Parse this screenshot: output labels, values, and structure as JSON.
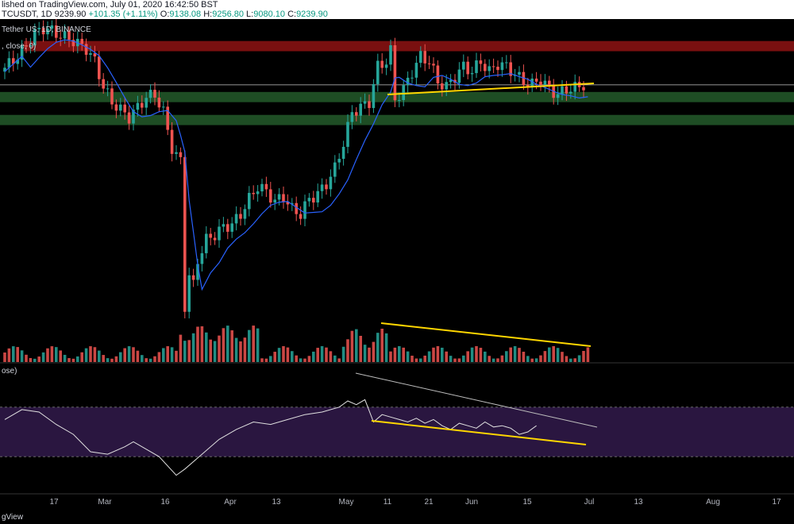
{
  "header": {
    "published": "lished on TradingView.com, July 01, 2020 16:42:50 BST",
    "symbol": "TCUSDT, 1D",
    "last": "9239.90",
    "change": "+101.35 (+1.11%)",
    "o_label": "O:",
    "o_val": "9138.08",
    "h_label": "H:",
    "h_val": "9256.80",
    "l_label": "L:",
    "l_val": "9080.10",
    "c_label": "C:",
    "c_val": "9239.90"
  },
  "legend": {
    "pair": "Tether US, 1D, BINANCE",
    "ma": ", close, 0)",
    "rsi": "ose)"
  },
  "footer": {
    "brand": "gView"
  },
  "colors": {
    "up": "#26a69a",
    "down": "#ef5350",
    "ma": "#2962ff",
    "resistance": "#7a1010",
    "support": "#1e4d24",
    "trend": "#ffd600",
    "rsi_band": "#2a1640"
  },
  "chart_data": {
    "type": "candlestick",
    "x_tick_labels": [
      "17",
      "Mar",
      "16",
      "Apr",
      "13",
      "May",
      "11",
      "21",
      "Jun",
      "15",
      "Jul",
      "13",
      "Aug",
      "17"
    ],
    "price_series": [
      [
        0,
        9500
      ],
      [
        2,
        9650
      ],
      [
        4,
        9800
      ],
      [
        6,
        10000
      ],
      [
        8,
        10250
      ],
      [
        10,
        10350
      ],
      [
        12,
        10300
      ],
      [
        14,
        10200
      ],
      [
        16,
        10150
      ],
      [
        18,
        10050
      ],
      [
        20,
        9950
      ],
      [
        22,
        9700
      ],
      [
        24,
        9200
      ],
      [
        26,
        8900
      ],
      [
        28,
        8750
      ],
      [
        30,
        8600
      ],
      [
        32,
        8800
      ],
      [
        34,
        9000
      ],
      [
        36,
        9050
      ],
      [
        38,
        8700
      ],
      [
        40,
        8000
      ],
      [
        41,
        7850
      ],
      [
        42,
        7750
      ],
      [
        43,
        4900
      ],
      [
        44,
        5500
      ],
      [
        45,
        5300
      ],
      [
        46,
        5800
      ],
      [
        48,
        6200
      ],
      [
        50,
        6300
      ],
      [
        52,
        6450
      ],
      [
        54,
        6500
      ],
      [
        56,
        6700
      ],
      [
        58,
        7000
      ],
      [
        60,
        7250
      ],
      [
        62,
        7150
      ],
      [
        64,
        6950
      ],
      [
        66,
        7050
      ],
      [
        68,
        6800
      ],
      [
        70,
        6700
      ],
      [
        72,
        7000
      ],
      [
        74,
        7100
      ],
      [
        76,
        7300
      ],
      [
        78,
        7600
      ],
      [
        80,
        8100
      ],
      [
        82,
        8700
      ],
      [
        84,
        8800
      ],
      [
        86,
        8900
      ],
      [
        88,
        9600
      ],
      [
        90,
        9700
      ],
      [
        91,
        9900
      ],
      [
        92,
        8950
      ],
      [
        94,
        9150
      ],
      [
        96,
        9500
      ],
      [
        98,
        9800
      ],
      [
        100,
        9700
      ],
      [
        102,
        9300
      ],
      [
        104,
        9200
      ],
      [
        106,
        9400
      ],
      [
        108,
        9600
      ],
      [
        110,
        9500
      ],
      [
        112,
        9700
      ],
      [
        114,
        9500
      ],
      [
        116,
        9650
      ],
      [
        118,
        9600
      ],
      [
        120,
        9450
      ],
      [
        122,
        9300
      ],
      [
        124,
        9250
      ],
      [
        126,
        9350
      ],
      [
        128,
        9150
      ],
      [
        130,
        9050
      ],
      [
        132,
        9150
      ],
      [
        134,
        9180
      ],
      [
        136,
        9239.9
      ]
    ],
    "levels": {
      "resistance": [
        9900,
        10100
      ],
      "support": [
        8900,
        9100,
        8450,
        8650
      ]
    },
    "volume_trend": "declining",
    "rsi_bands": [
      70,
      30
    ],
    "rsi_series": [
      [
        0,
        60
      ],
      [
        4,
        68
      ],
      [
        8,
        66
      ],
      [
        12,
        56
      ],
      [
        16,
        48
      ],
      [
        20,
        34
      ],
      [
        24,
        32
      ],
      [
        28,
        38
      ],
      [
        30,
        42
      ],
      [
        33,
        36
      ],
      [
        36,
        30
      ],
      [
        40,
        15
      ],
      [
        42,
        20
      ],
      [
        46,
        32
      ],
      [
        50,
        44
      ],
      [
        54,
        52
      ],
      [
        58,
        58
      ],
      [
        62,
        56
      ],
      [
        66,
        60
      ],
      [
        70,
        64
      ],
      [
        74,
        66
      ],
      [
        78,
        70
      ],
      [
        80,
        75
      ],
      [
        82,
        72
      ],
      [
        84,
        76
      ],
      [
        86,
        58
      ],
      [
        88,
        64
      ],
      [
        90,
        62
      ],
      [
        92,
        60
      ],
      [
        94,
        58
      ],
      [
        96,
        61
      ],
      [
        98,
        57
      ],
      [
        100,
        60
      ],
      [
        102,
        55
      ],
      [
        104,
        52
      ],
      [
        106,
        57
      ],
      [
        108,
        55
      ],
      [
        110,
        53
      ],
      [
        112,
        58
      ],
      [
        114,
        54
      ],
      [
        116,
        55
      ],
      [
        118,
        53
      ],
      [
        120,
        48
      ],
      [
        122,
        50
      ],
      [
        124,
        55
      ]
    ]
  }
}
